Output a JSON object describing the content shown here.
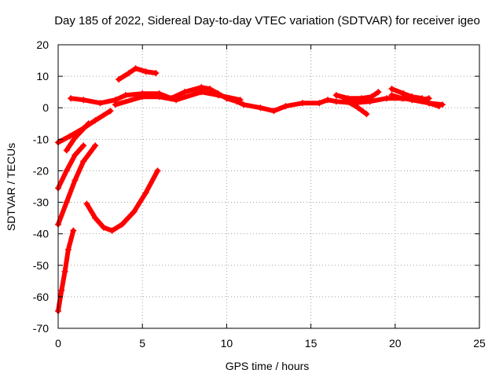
{
  "chart_data": {
    "type": "scatter",
    "title": "Day 185 of 2022, Sidereal Day-to-day VTEC variation (SDTVAR) for receiver igeo",
    "xlabel": "GPS time / hours",
    "ylabel": "SDTVAR / TECUs",
    "xlim": [
      0,
      25
    ],
    "ylim": [
      -70,
      20
    ],
    "xticks": [
      0,
      5,
      10,
      15,
      20,
      25
    ],
    "yticks": [
      -70,
      -60,
      -50,
      -40,
      -30,
      -20,
      -10,
      0,
      10,
      20
    ],
    "xtick_labels": [
      "0",
      "5",
      "10",
      "15",
      "20",
      "25"
    ],
    "ytick_labels": [
      "-70",
      "-60",
      "-50",
      "-40",
      "-30",
      "-20",
      "-10",
      "0",
      "10",
      "20"
    ],
    "grid": true,
    "legend": "none",
    "marker": "+",
    "color": "#ff0000",
    "series": [
      {
        "name": "main-band",
        "x": [
          0.75,
          1.5,
          2.5,
          3.4,
          4.0,
          5.0,
          6.0,
          6.7,
          7.5,
          8.5,
          9.0,
          9.5,
          10.0,
          10.6,
          11.0,
          12.0,
          12.8,
          13.5,
          14.5,
          15.5,
          16.0,
          16.5,
          17.5,
          18.5,
          19.5,
          20.5,
          21.0,
          22.0,
          22.8
        ],
        "y": [
          3,
          2.5,
          1.5,
          2.5,
          4,
          4.5,
          4.5,
          3,
          5,
          6.5,
          6,
          4.5,
          3,
          2,
          1,
          0,
          -1,
          0.5,
          1.5,
          1.5,
          2.5,
          2,
          1.5,
          2,
          3,
          3,
          2.5,
          1.5,
          1
        ]
      },
      {
        "name": "band-lower",
        "x": [
          3.4,
          5.0,
          6.0,
          7.0,
          8.5,
          9.5,
          10.8
        ],
        "y": [
          1,
          3.5,
          3.5,
          2.5,
          5,
          4,
          2.5
        ]
      },
      {
        "name": "upper-arc",
        "x": [
          3.6,
          4.2,
          4.6,
          5.2,
          5.8
        ],
        "y": [
          9,
          11,
          12.5,
          11.5,
          11
        ]
      },
      {
        "name": "right-cluster",
        "x": [
          16.5,
          17.2,
          18.0,
          18.6,
          19.0
        ],
        "y": [
          4,
          3,
          3,
          3.5,
          5
        ]
      },
      {
        "name": "right-dip",
        "x": [
          17.0,
          17.8,
          18.3
        ],
        "y": [
          2.5,
          0,
          -2
        ]
      },
      {
        "name": "far-right-a",
        "x": [
          19.8,
          20.5,
          21.0,
          21.6,
          22.0,
          22.6
        ],
        "y": [
          6,
          4.5,
          3.5,
          3,
          1.5,
          0.5
        ]
      },
      {
        "name": "far-right-b",
        "x": [
          19.8,
          20.4,
          21.0,
          21.5,
          22.0
        ],
        "y": [
          4,
          3,
          3.5,
          2.5,
          3
        ]
      },
      {
        "name": "early-rise",
        "x": [
          0.0,
          0.7,
          1.5,
          2.2,
          3.1
        ],
        "y": [
          -11,
          -9,
          -6.5,
          -4,
          -1
        ]
      },
      {
        "name": "early-rise-b",
        "x": [
          0.5,
          1.0,
          1.8
        ],
        "y": [
          -13.5,
          -9.5,
          -5
        ]
      },
      {
        "name": "steep-a",
        "x": [
          0.0,
          0.5,
          1.0,
          1.5
        ],
        "y": [
          -25.5,
          -20,
          -15,
          -12
        ]
      },
      {
        "name": "steep-b",
        "x": [
          0.0,
          0.5,
          1.0,
          1.5,
          2.2
        ],
        "y": [
          -37,
          -30,
          -23,
          -17,
          -12
        ]
      },
      {
        "name": "steep-c",
        "x": [
          0.0,
          0.2,
          0.4,
          0.6,
          0.9
        ],
        "y": [
          -64.5,
          -58,
          -52,
          -45,
          -39
        ]
      },
      {
        "name": "u-curve",
        "x": [
          1.7,
          2.2,
          2.7,
          3.2,
          3.8,
          4.5,
          5.2,
          5.9
        ],
        "y": [
          -30.5,
          -35,
          -38,
          -39,
          -37,
          -33,
          -27,
          -20
        ]
      }
    ]
  }
}
